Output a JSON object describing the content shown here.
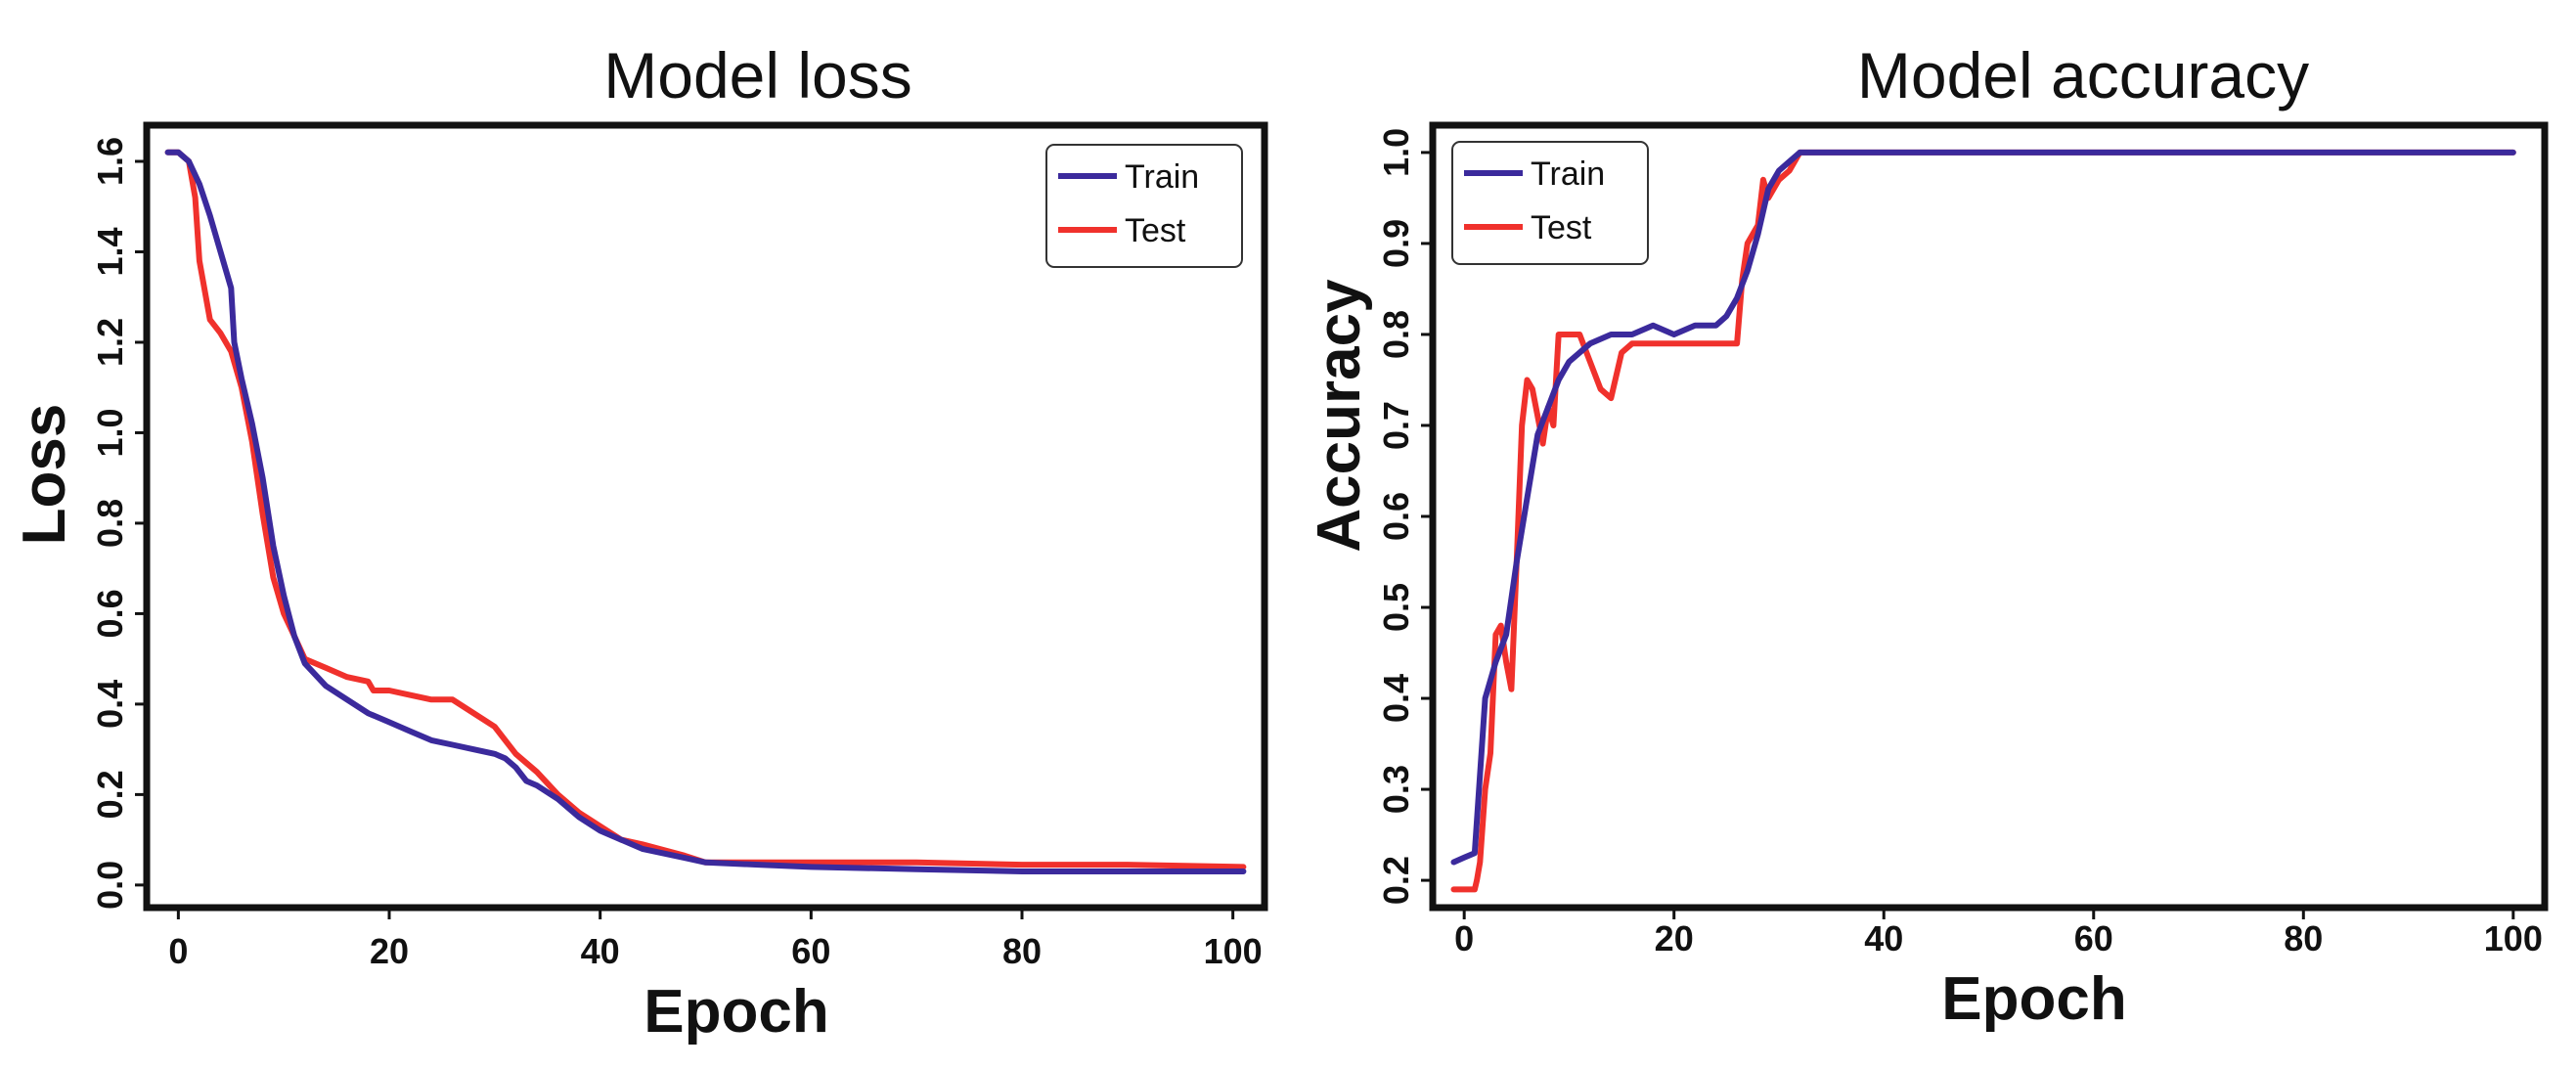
{
  "chart_data": [
    {
      "type": "line",
      "title": "Model loss",
      "xlabel": "Epoch",
      "ylabel": "Loss",
      "xlim": [
        -3,
        103
      ],
      "ylim": [
        -0.05,
        1.68
      ],
      "xticks": [
        0,
        20,
        40,
        60,
        80,
        100
      ],
      "yticks": [
        0.0,
        0.2,
        0.4,
        0.6,
        0.8,
        1.0,
        1.2,
        1.4,
        1.6
      ],
      "ytick_labels": [
        "0.0",
        "0.2",
        "0.4",
        "0.6",
        "0.8",
        "1.0",
        "1.2",
        "1.4",
        "1.6"
      ],
      "legend_position": "top-right",
      "series": [
        {
          "name": "Train",
          "color": "#3b2a9c",
          "x": [
            -1,
            0,
            1,
            2,
            3,
            4,
            5,
            5.3,
            6,
            7,
            8,
            9,
            10,
            11,
            12,
            14,
            16,
            18,
            20,
            22,
            24,
            26,
            28,
            30,
            31,
            32,
            33,
            34,
            36,
            38,
            40,
            44,
            48,
            50,
            55,
            60,
            70,
            80,
            90,
            101
          ],
          "y": [
            1.62,
            1.62,
            1.6,
            1.55,
            1.48,
            1.4,
            1.32,
            1.2,
            1.12,
            1.02,
            0.9,
            0.75,
            0.64,
            0.55,
            0.49,
            0.44,
            0.41,
            0.38,
            0.36,
            0.34,
            0.32,
            0.31,
            0.3,
            0.29,
            0.28,
            0.26,
            0.23,
            0.22,
            0.19,
            0.15,
            0.12,
            0.08,
            0.06,
            0.05,
            0.045,
            0.04,
            0.035,
            0.03,
            0.03,
            0.03
          ]
        },
        {
          "name": "Test",
          "color": "#f0312c",
          "x": [
            -1,
            0,
            1,
            1.6,
            2,
            3,
            4,
            5,
            6,
            7,
            8,
            9,
            10,
            11,
            12,
            14,
            16,
            18,
            18.5,
            20,
            22,
            24,
            26,
            28,
            30,
            32,
            34,
            36,
            38,
            40,
            42,
            44,
            48,
            50,
            55,
            60,
            70,
            80,
            90,
            101
          ],
          "y": [
            1.62,
            1.62,
            1.6,
            1.52,
            1.38,
            1.25,
            1.22,
            1.18,
            1.1,
            0.98,
            0.82,
            0.68,
            0.6,
            0.55,
            0.5,
            0.48,
            0.46,
            0.45,
            0.43,
            0.43,
            0.42,
            0.41,
            0.41,
            0.38,
            0.35,
            0.29,
            0.25,
            0.2,
            0.16,
            0.13,
            0.1,
            0.09,
            0.065,
            0.05,
            0.05,
            0.05,
            0.05,
            0.045,
            0.045,
            0.04
          ]
        }
      ]
    },
    {
      "type": "line",
      "title": "Model accuracy",
      "xlabel": "Epoch",
      "ylabel": "Accuracy",
      "xlim": [
        -3,
        103
      ],
      "ylim": [
        0.17,
        1.03
      ],
      "xticks": [
        0,
        20,
        40,
        60,
        80,
        100
      ],
      "yticks": [
        0.2,
        0.3,
        0.4,
        0.5,
        0.6,
        0.7,
        0.8,
        0.9,
        1.0
      ],
      "ytick_labels": [
        "0.2",
        "0.3",
        "0.4",
        "0.5",
        "0.6",
        "0.7",
        "0.8",
        "0.9",
        "1.0"
      ],
      "legend_position": "top-left",
      "series": [
        {
          "name": "Train",
          "color": "#3b2a9c",
          "x": [
            -1,
            0,
            1,
            2,
            3,
            4,
            5,
            6,
            7,
            8,
            9,
            10,
            12,
            14,
            16,
            18,
            20,
            22,
            24,
            25,
            26,
            27,
            28,
            29,
            30,
            31,
            32,
            35,
            40,
            50,
            60,
            80,
            100
          ],
          "y": [
            0.22,
            0.225,
            0.23,
            0.4,
            0.44,
            0.47,
            0.55,
            0.62,
            0.69,
            0.72,
            0.75,
            0.77,
            0.79,
            0.8,
            0.8,
            0.81,
            0.8,
            0.81,
            0.81,
            0.82,
            0.84,
            0.87,
            0.91,
            0.96,
            0.98,
            0.99,
            1.0,
            1.0,
            1.0,
            1.0,
            1.0,
            1.0,
            1.0
          ]
        },
        {
          "name": "Test",
          "color": "#f0312c",
          "x": [
            -1,
            0,
            1,
            1.2,
            1.5,
            2,
            2.5,
            3,
            3.5,
            4,
            4.5,
            5,
            5.5,
            6,
            6.5,
            7,
            7.5,
            8,
            8.5,
            9,
            9.5,
            10,
            11,
            12,
            13,
            14,
            15,
            16,
            18,
            20,
            22,
            24,
            26,
            26.5,
            27,
            28,
            28.5,
            29,
            30,
            31,
            32,
            35,
            40,
            50,
            60,
            80,
            100
          ],
          "y": [
            0.19,
            0.19,
            0.19,
            0.2,
            0.22,
            0.3,
            0.34,
            0.47,
            0.48,
            0.44,
            0.41,
            0.55,
            0.7,
            0.75,
            0.74,
            0.71,
            0.68,
            0.72,
            0.7,
            0.8,
            0.8,
            0.8,
            0.8,
            0.77,
            0.74,
            0.73,
            0.78,
            0.79,
            0.79,
            0.79,
            0.79,
            0.79,
            0.79,
            0.86,
            0.9,
            0.92,
            0.97,
            0.95,
            0.97,
            0.98,
            1.0,
            1.0,
            1.0,
            1.0,
            1.0,
            1.0,
            1.0
          ]
        }
      ]
    }
  ]
}
